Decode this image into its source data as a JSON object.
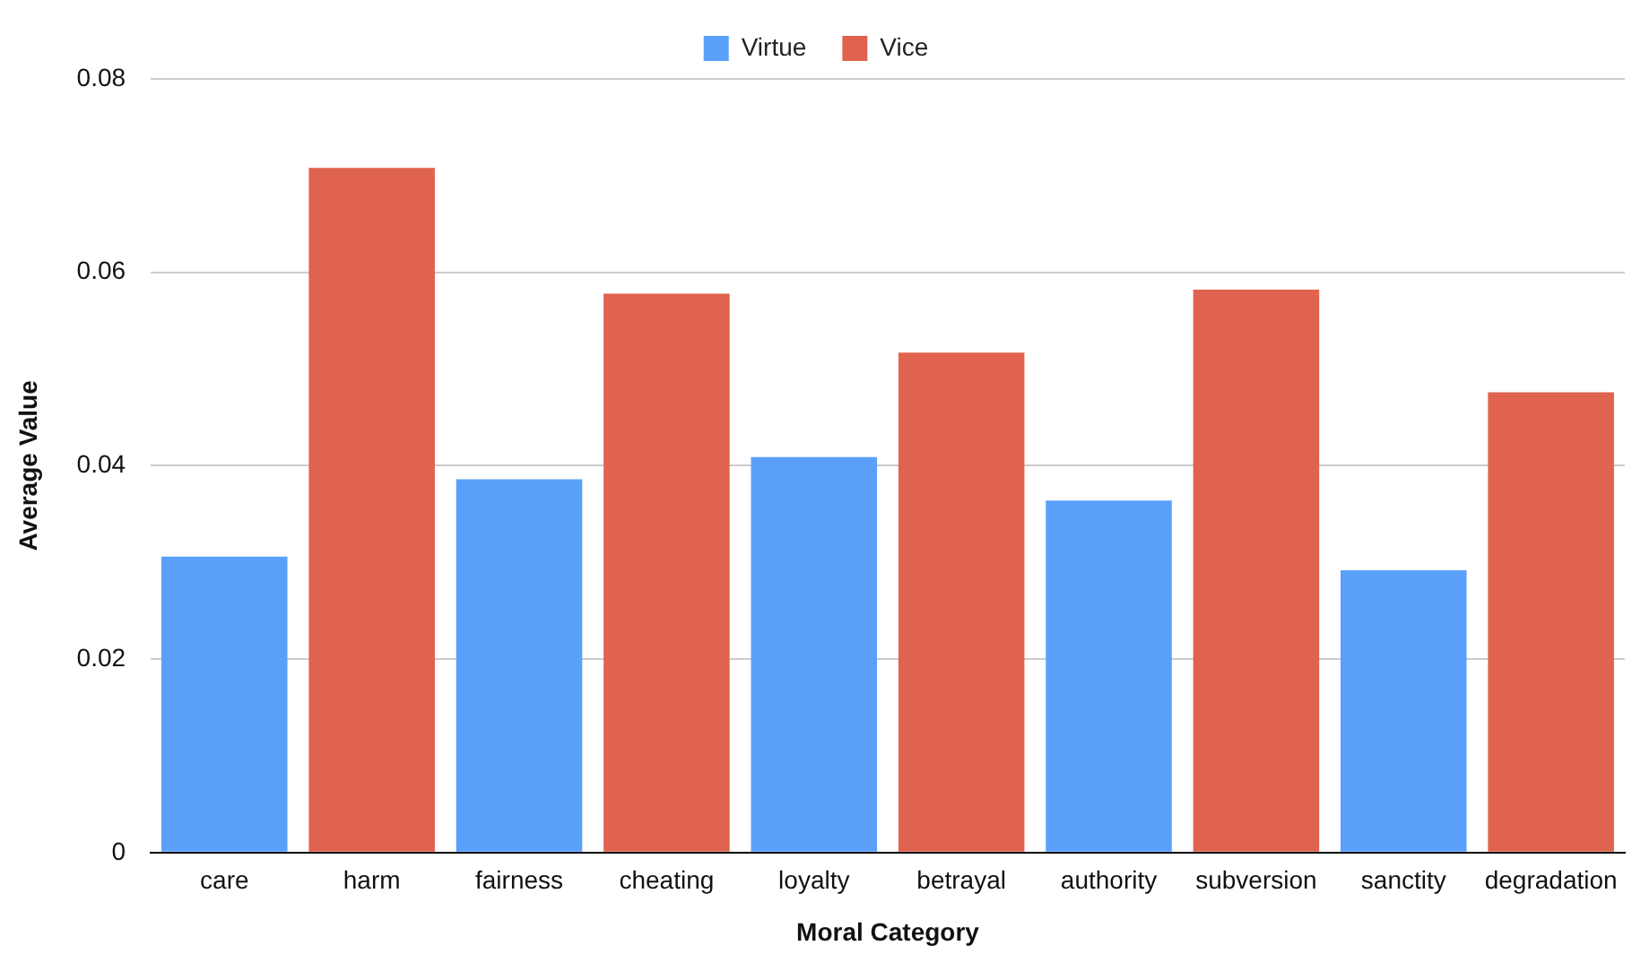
{
  "chart_data": {
    "type": "bar",
    "xlabel": "Moral Category",
    "ylabel": "Average Value",
    "categories": [
      "care",
      "harm",
      "fairness",
      "cheating",
      "loyalty",
      "betrayal",
      "authority",
      "subversion",
      "sanctity",
      "degradation"
    ],
    "series": [
      {
        "name": "Virtue",
        "color": "#5aa0fb",
        "values": [
          0.0306,
          null,
          0.0386,
          null,
          0.0409,
          null,
          0.0364,
          null,
          0.0292,
          null
        ]
      },
      {
        "name": "Vice",
        "color": "#e0634f",
        "values": [
          null,
          0.0708,
          null,
          0.0578,
          null,
          0.0517,
          null,
          0.0582,
          null,
          0.0476
        ]
      }
    ],
    "ylim": [
      0,
      0.08
    ],
    "yticks": [
      0,
      0.02,
      0.04,
      0.06,
      0.08
    ],
    "grid": "y",
    "legend": "top"
  }
}
